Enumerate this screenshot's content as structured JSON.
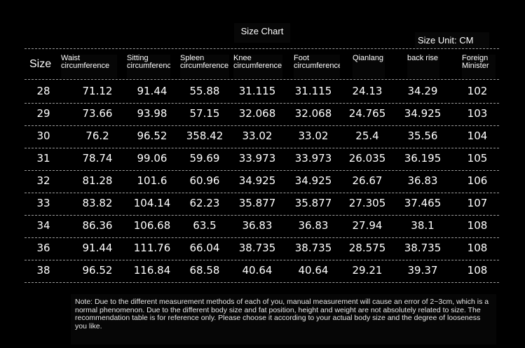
{
  "title": "Size Chart",
  "unit": "Size Unit: CM",
  "headers": [
    "Size",
    "Waist circumference",
    "Sitting circumference",
    "Spleen circumference",
    "Knee circumference",
    "Foot circumference",
    "Qianlang",
    "back rise",
    "Foreign Minister"
  ],
  "rows": [
    [
      "28",
      "71.12",
      "91.44",
      "55.88",
      "31.115",
      "31.115",
      "24.13",
      "34.29",
      "102"
    ],
    [
      "29",
      "73.66",
      "93.98",
      "57.15",
      "32.068",
      "32.068",
      "24.765",
      "34.925",
      "103"
    ],
    [
      "30",
      "76.2",
      "96.52",
      "358.42",
      "33.02",
      "33.02",
      "25.4",
      "35.56",
      "104"
    ],
    [
      "31",
      "78.74",
      "99.06",
      "59.69",
      "33.973",
      "33.973",
      "26.035",
      "36.195",
      "105"
    ],
    [
      "32",
      "81.28",
      "101.6",
      "60.96",
      "34.925",
      "34.925",
      "26.67",
      "36.83",
      "106"
    ],
    [
      "33",
      "83.82",
      "104.14",
      "62.23",
      "35.877",
      "35.877",
      "27.305",
      "37.465",
      "107"
    ],
    [
      "34",
      "86.36",
      "106.68",
      "63.5",
      "36.83",
      "36.83",
      "27.94",
      "38.1",
      "108"
    ],
    [
      "36",
      "91.44",
      "111.76",
      "66.04",
      "38.735",
      "38.735",
      "28.575",
      "38.735",
      "108"
    ],
    [
      "38",
      "96.52",
      "116.84",
      "68.58",
      "40.64",
      "40.64",
      "29.21",
      "39.37",
      "108"
    ]
  ],
  "note": "Note: Due to the different measurement methods of each of you, manual measurement will cause an error of 2~3cm, which is a normal phenomenon. Due to the different body size and fat position, height and weight are not absolutely related to size. The recommendation table is for reference only. Please choose it according to your actual body size and the degree of looseness you like."
}
